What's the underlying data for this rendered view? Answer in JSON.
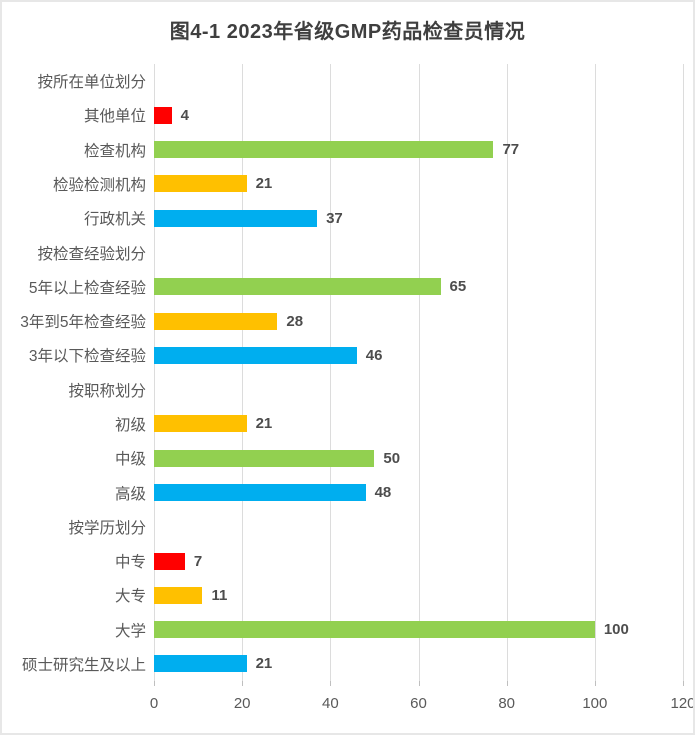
{
  "chart_data": {
    "type": "bar",
    "orientation": "horizontal",
    "title": "图4-1 2023年省级GMP药品检查员情况",
    "xlabel": "",
    "ylabel": "",
    "xlim": [
      0,
      120
    ],
    "x_ticks": [
      "0",
      "20",
      "40",
      "60",
      "80",
      "100",
      "120"
    ],
    "grid": true,
    "value_labels": true,
    "legend": "none",
    "palette": {
      "red": "#ff0000",
      "green": "#92d050",
      "gold": "#ffc000",
      "blue": "#00aeef"
    },
    "rows": [
      {
        "label": "按所在单位划分",
        "group": true
      },
      {
        "label": "其他单位",
        "value": 4,
        "color": "#ff0000"
      },
      {
        "label": "检查机构",
        "value": 77,
        "color": "#92d050"
      },
      {
        "label": "检验检测机构",
        "value": 21,
        "color": "#ffc000"
      },
      {
        "label": "行政机关",
        "value": 37,
        "color": "#00aeef"
      },
      {
        "label": "按检查经验划分",
        "group": true
      },
      {
        "label": "5年以上检查经验",
        "value": 65,
        "color": "#92d050"
      },
      {
        "label": "3年到5年检查经验",
        "value": 28,
        "color": "#ffc000"
      },
      {
        "label": "3年以下检查经验",
        "value": 46,
        "color": "#00aeef"
      },
      {
        "label": "按职称划分",
        "group": true
      },
      {
        "label": "初级",
        "value": 21,
        "color": "#ffc000"
      },
      {
        "label": "中级",
        "value": 50,
        "color": "#92d050"
      },
      {
        "label": "高级",
        "value": 48,
        "color": "#00aeef"
      },
      {
        "label": "按学历划分",
        "group": true
      },
      {
        "label": "中专",
        "value": 7,
        "color": "#ff0000"
      },
      {
        "label": "大专",
        "value": 11,
        "color": "#ffc000"
      },
      {
        "label": "大学",
        "value": 100,
        "color": "#92d050"
      },
      {
        "label": "硕士研究生及以上",
        "value": 21,
        "color": "#00aeef"
      }
    ]
  }
}
